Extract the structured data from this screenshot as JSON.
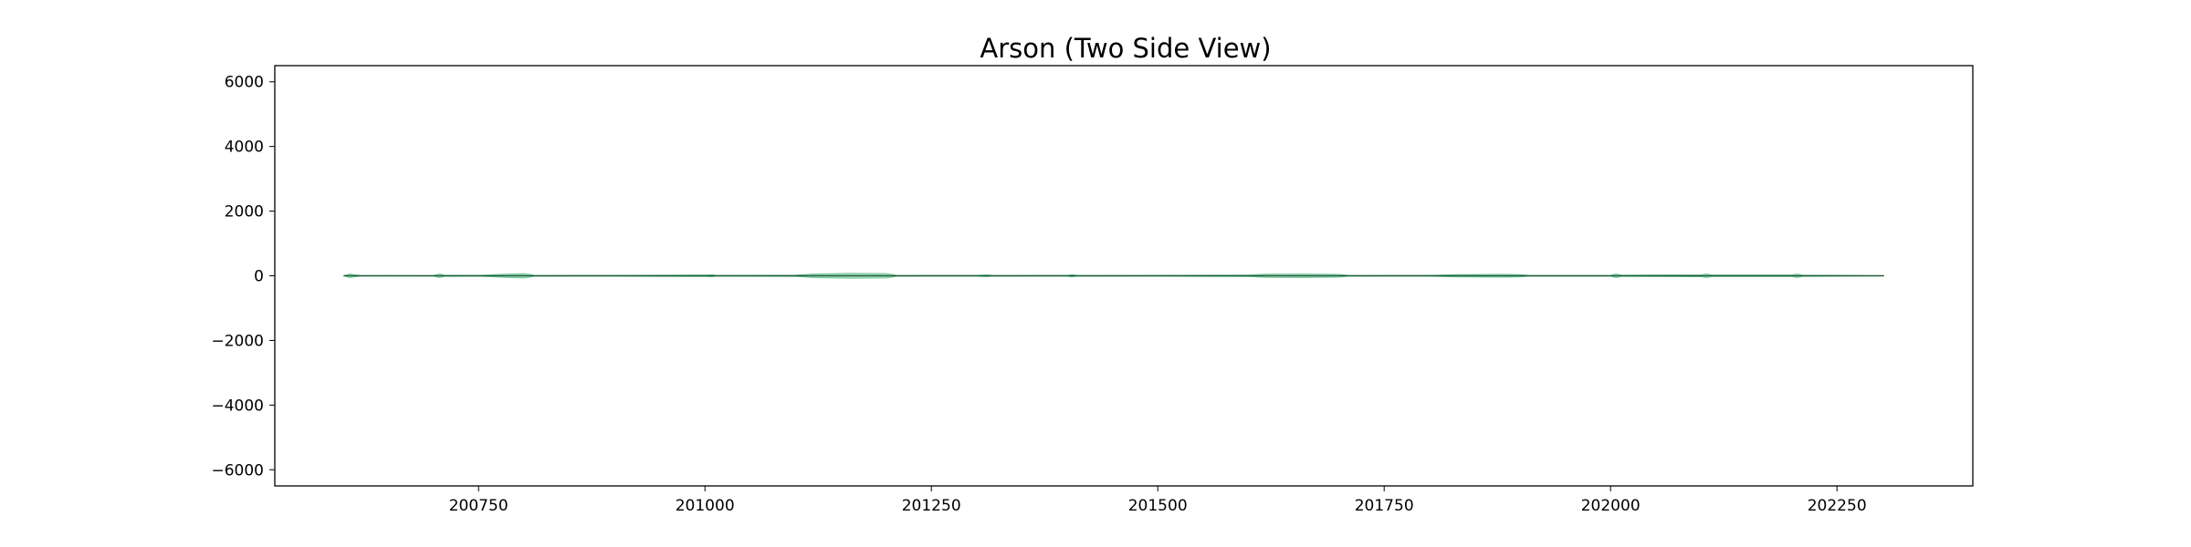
{
  "chart_data": {
    "type": "area",
    "title": "Arson (Two Side View)",
    "xlabel": "",
    "ylabel": "",
    "xlim": [
      200525,
      202400
    ],
    "ylim": [
      -6500,
      6500
    ],
    "x_ticks": [
      200750,
      201000,
      201250,
      201500,
      201750,
      202000,
      202250
    ],
    "y_ticks": [
      6000,
      4000,
      2000,
      0,
      -2000,
      -4000,
      -6000
    ],
    "y_tick_labels": [
      "6000",
      "4000",
      "2000",
      "0",
      "−2000",
      "−4000",
      "−6000"
    ],
    "grid": false,
    "legend": "none",
    "band_color": "#3cb371",
    "line_color": "#1f5f3a",
    "x_range": [
      200601,
      202302
    ],
    "series": [
      {
        "values": [
          [
            200601,
            0
          ],
          [
            200608,
            60
          ],
          [
            200612,
            40
          ],
          [
            200620,
            10
          ],
          [
            200650,
            5
          ],
          [
            200700,
            10
          ],
          [
            200707,
            60
          ],
          [
            200712,
            20
          ],
          [
            200750,
            15
          ],
          [
            200780,
            50
          ],
          [
            200800,
            70
          ],
          [
            200808,
            40
          ],
          [
            200812,
            10
          ],
          [
            200900,
            15
          ],
          [
            200950,
            20
          ],
          [
            201000,
            25
          ],
          [
            201008,
            35
          ],
          [
            201012,
            15
          ],
          [
            201100,
            20
          ],
          [
            201120,
            60
          ],
          [
            201160,
            75
          ],
          [
            201200,
            70
          ],
          [
            201208,
            40
          ],
          [
            201212,
            10
          ],
          [
            201300,
            15
          ],
          [
            201310,
            30
          ],
          [
            201320,
            10
          ],
          [
            201400,
            15
          ],
          [
            201405,
            40
          ],
          [
            201412,
            10
          ],
          [
            201500,
            15
          ],
          [
            201550,
            20
          ],
          [
            201600,
            25
          ],
          [
            201620,
            50
          ],
          [
            201660,
            55
          ],
          [
            201700,
            45
          ],
          [
            201712,
            10
          ],
          [
            201800,
            15
          ],
          [
            201830,
            40
          ],
          [
            201880,
            45
          ],
          [
            201900,
            40
          ],
          [
            201912,
            10
          ],
          [
            202000,
            15
          ],
          [
            202006,
            60
          ],
          [
            202012,
            20
          ],
          [
            202100,
            30
          ],
          [
            202106,
            60
          ],
          [
            202112,
            25
          ],
          [
            202200,
            25
          ],
          [
            202206,
            55
          ],
          [
            202212,
            20
          ],
          [
            202250,
            15
          ],
          [
            202302,
            0
          ]
        ]
      }
    ]
  }
}
